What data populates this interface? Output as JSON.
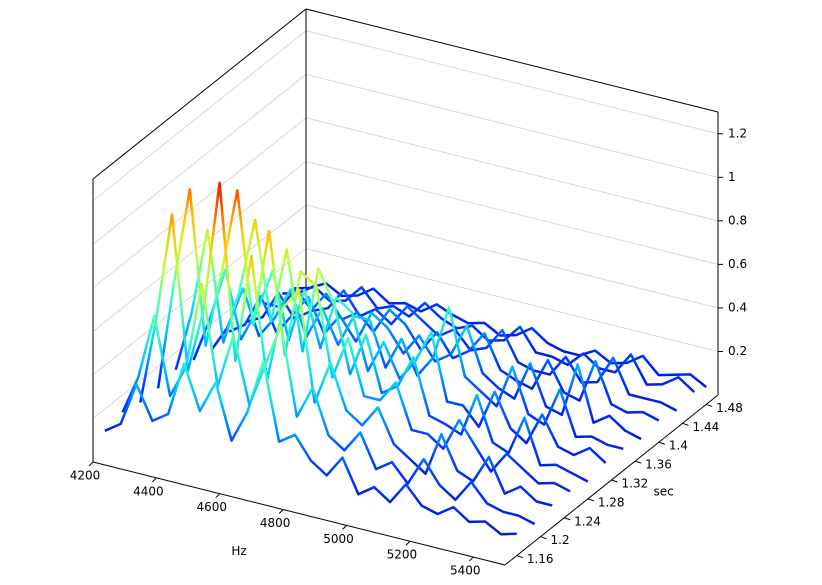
{
  "chart_data": {
    "type": "waterfall3d",
    "x_label": "Hz",
    "y_label": "sec",
    "x": [
      4200,
      4250,
      4300,
      4350,
      4400,
      4450,
      4500,
      4550,
      4600,
      4650,
      4700,
      4750,
      4800,
      4850,
      4900,
      4950,
      5000,
      5050,
      5100,
      5150,
      5200,
      5250,
      5300,
      5350,
      5400,
      5450,
      5500
    ],
    "xlim": [
      4200,
      5500
    ],
    "xticks": [
      4200,
      4400,
      4600,
      4800,
      5000,
      5200,
      5400
    ],
    "ylim": [
      1.14,
      1.5
    ],
    "yticks": [
      1.16,
      1.2,
      1.24,
      1.28,
      1.32,
      1.36,
      1.4,
      1.44,
      1.48
    ],
    "zlim": [
      0,
      1.3
    ],
    "zticks": [
      0.2,
      0.4,
      0.6,
      0.8,
      1,
      1.2
    ],
    "grid": true,
    "colormap": [
      "#0000c8",
      "#0040ff",
      "#00c8ff",
      "#40ffc0",
      "#c0ff40",
      "#ffc000",
      "#ff4000",
      "#e00000"
    ],
    "series": [
      {
        "y": 1.16,
        "values": [
          0.1,
          0.15,
          0.35,
          0.2,
          0.25,
          0.5,
          0.3,
          0.45,
          0.2,
          0.35,
          0.6,
          0.25,
          0.3,
          0.2,
          0.15,
          0.25,
          0.1,
          0.15,
          0.1,
          0.2,
          0.12,
          0.1,
          0.15,
          0.1,
          0.12,
          0.08,
          0.1
        ]
      },
      {
        "y": 1.19,
        "values": [
          0.12,
          0.3,
          0.6,
          0.25,
          0.4,
          0.8,
          0.35,
          0.6,
          0.3,
          0.5,
          0.7,
          0.3,
          0.45,
          0.25,
          0.2,
          0.3,
          0.15,
          0.2,
          0.12,
          0.25,
          0.15,
          0.1,
          0.2,
          0.12,
          0.1,
          0.1,
          0.08
        ]
      },
      {
        "y": 1.22,
        "values": [
          0.1,
          0.5,
          1.0,
          0.3,
          0.6,
          1.2,
          0.4,
          0.9,
          0.35,
          0.7,
          0.8,
          0.3,
          0.5,
          0.3,
          0.25,
          0.35,
          0.2,
          0.15,
          0.1,
          0.3,
          0.15,
          0.12,
          0.25,
          0.1,
          0.15,
          0.1,
          0.1
        ]
      },
      {
        "y": 1.25,
        "values": [
          0.1,
          0.6,
          1.05,
          0.35,
          0.7,
          1.1,
          0.5,
          0.95,
          0.4,
          0.8,
          0.75,
          0.35,
          0.55,
          0.3,
          0.3,
          0.4,
          0.2,
          0.2,
          0.15,
          0.3,
          0.2,
          0.1,
          0.2,
          0.15,
          0.1,
          0.12,
          0.1
        ]
      },
      {
        "y": 1.28,
        "values": [
          0.12,
          0.4,
          0.8,
          0.3,
          0.55,
          0.9,
          0.45,
          0.8,
          0.35,
          0.75,
          0.6,
          0.3,
          0.5,
          0.25,
          0.3,
          0.45,
          0.2,
          0.18,
          0.15,
          0.35,
          0.15,
          0.12,
          0.3,
          0.1,
          0.12,
          0.1,
          0.08
        ]
      },
      {
        "y": 1.31,
        "values": [
          0.1,
          0.3,
          0.55,
          0.25,
          0.4,
          0.6,
          0.3,
          0.55,
          0.3,
          0.55,
          0.5,
          0.25,
          0.4,
          0.25,
          0.35,
          0.5,
          0.2,
          0.2,
          0.12,
          0.3,
          0.15,
          0.1,
          0.25,
          0.12,
          0.1,
          0.15,
          0.1
        ]
      },
      {
        "y": 1.34,
        "values": [
          0.08,
          0.2,
          0.4,
          0.2,
          0.3,
          0.45,
          0.25,
          0.4,
          0.25,
          0.4,
          0.4,
          0.2,
          0.35,
          0.2,
          0.3,
          0.55,
          0.25,
          0.2,
          0.15,
          0.35,
          0.15,
          0.12,
          0.3,
          0.1,
          0.12,
          0.1,
          0.1
        ]
      },
      {
        "y": 1.37,
        "values": [
          0.1,
          0.15,
          0.3,
          0.15,
          0.25,
          0.35,
          0.2,
          0.3,
          0.2,
          0.35,
          0.3,
          0.2,
          0.3,
          0.2,
          0.25,
          0.4,
          0.2,
          0.15,
          0.12,
          0.3,
          0.12,
          0.1,
          0.35,
          0.1,
          0.15,
          0.1,
          0.08
        ]
      },
      {
        "y": 1.4,
        "values": [
          0.08,
          0.12,
          0.25,
          0.15,
          0.2,
          0.3,
          0.2,
          0.25,
          0.18,
          0.3,
          0.25,
          0.15,
          0.25,
          0.15,
          0.2,
          0.3,
          0.15,
          0.12,
          0.1,
          0.25,
          0.12,
          0.1,
          0.3,
          0.12,
          0.1,
          0.12,
          0.1
        ]
      },
      {
        "y": 1.43,
        "values": [
          0.1,
          0.1,
          0.2,
          0.12,
          0.15,
          0.25,
          0.15,
          0.2,
          0.15,
          0.25,
          0.2,
          0.15,
          0.2,
          0.12,
          0.15,
          0.25,
          0.12,
          0.1,
          0.1,
          0.2,
          0.1,
          0.12,
          0.25,
          0.1,
          0.1,
          0.1,
          0.08
        ]
      },
      {
        "y": 1.46,
        "values": [
          0.08,
          0.1,
          0.15,
          0.1,
          0.12,
          0.2,
          0.12,
          0.15,
          0.12,
          0.2,
          0.15,
          0.12,
          0.15,
          0.1,
          0.12,
          0.2,
          0.1,
          0.1,
          0.08,
          0.15,
          0.1,
          0.1,
          0.2,
          0.08,
          0.1,
          0.15,
          0.1
        ]
      },
      {
        "y": 1.48,
        "values": [
          0.06,
          0.08,
          0.12,
          0.08,
          0.1,
          0.15,
          0.1,
          0.12,
          0.1,
          0.15,
          0.12,
          0.1,
          0.12,
          0.08,
          0.1,
          0.15,
          0.1,
          0.08,
          0.08,
          0.12,
          0.08,
          0.1,
          0.15,
          0.08,
          0.1,
          0.12,
          0.08
        ]
      }
    ]
  }
}
